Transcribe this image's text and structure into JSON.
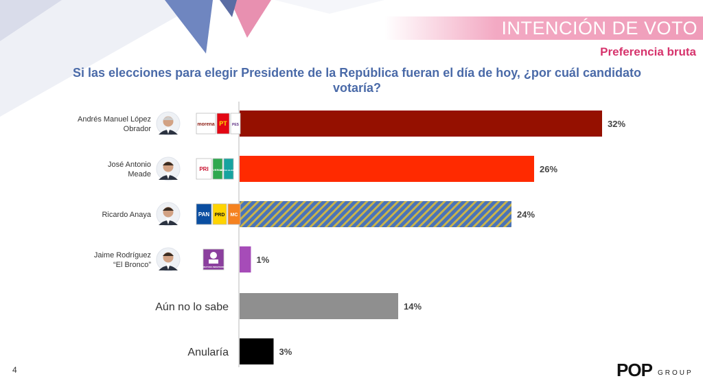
{
  "header": {
    "title": "INTENCIÓN DE VOTO",
    "subtitle": "Preferencia bruta"
  },
  "question": "Si las elecciones para elegir Presidente de la República fueran el día de hoy, ¿por cuál candidato votaría?",
  "page_number": "4",
  "brand": {
    "name": "POP",
    "suffix": "GROUP"
  },
  "colors": {
    "amlo": "#951000",
    "meade": "#ff2a00",
    "anaya_stripe_a": "#4a73b8",
    "anaya_stripe_b": "#c9b44a",
    "bronco": "#a64cb8",
    "no_sabe": "#8f8f8f",
    "anularia": "#000000"
  },
  "chart_data": {
    "type": "bar",
    "orientation": "horizontal",
    "categories": [
      [
        "Andrés Manuel López",
        "Obrador"
      ],
      [
        "José Antonio",
        "Meade"
      ],
      [
        "Ricardo Anaya"
      ],
      [
        "Jaime Rodríguez",
        "“El Bronco”"
      ],
      [
        "Aún no lo sabe"
      ],
      [
        "Anularía"
      ]
    ],
    "values": [
      32,
      26,
      24,
      1,
      14,
      3
    ],
    "value_labels": [
      "32%",
      "26%",
      "24%",
      "1%",
      "14%",
      "3%"
    ],
    "party_logos": [
      [
        "morena",
        "PT",
        "PES"
      ],
      [
        "PRI",
        "VERDE",
        "NUEVA ALIANZA"
      ],
      [
        "PAN",
        "PRD",
        "MC"
      ],
      [
        "CANDIDATURA INDEPENDIENTE"
      ],
      [],
      []
    ],
    "xlim": [
      0,
      34
    ],
    "grid": false
  }
}
